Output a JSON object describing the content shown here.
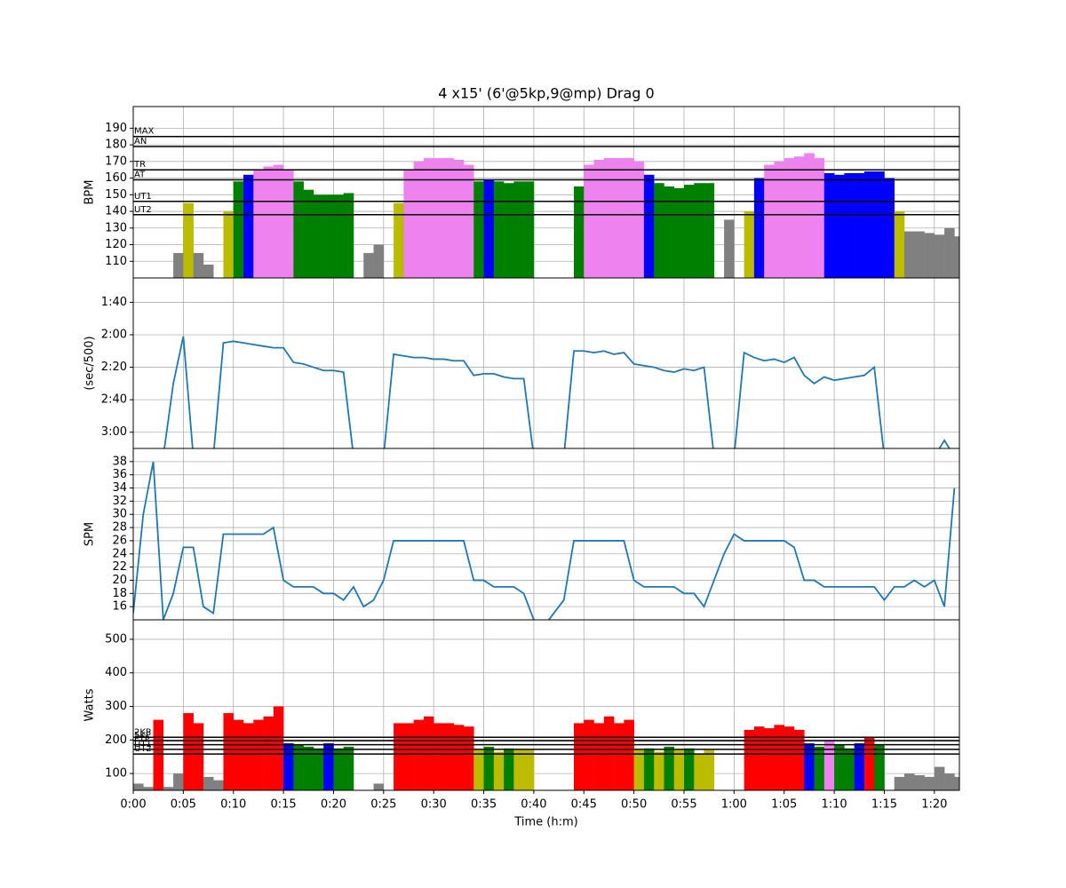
{
  "chart_data": [
    {
      "type": "bar",
      "title": "4 x15' (6'@5kp,9@mp) Drag 0",
      "ylabel": "BPM",
      "x": [
        0,
        1,
        2,
        3,
        4,
        5,
        6,
        7,
        8,
        9,
        10,
        11,
        12,
        13,
        14,
        15,
        16,
        17,
        18,
        19,
        20,
        21,
        22,
        23,
        24,
        25,
        26,
        27,
        28,
        29,
        30,
        31,
        32,
        33,
        34,
        35,
        36,
        37,
        38,
        39,
        40,
        41,
        42,
        43,
        44,
        45,
        46,
        47,
        48,
        49,
        50,
        51,
        52,
        53,
        54,
        55,
        56,
        57,
        58,
        59,
        60,
        61,
        62,
        63,
        64,
        65,
        66,
        67,
        68,
        69,
        70,
        71,
        72,
        73,
        74,
        75,
        76,
        77,
        78,
        79,
        80,
        81,
        82
      ],
      "values": [
        null,
        null,
        null,
        null,
        115,
        145,
        115,
        108,
        null,
        140,
        158,
        162,
        165,
        167,
        168,
        165,
        158,
        153,
        150,
        150,
        150,
        151,
        null,
        115,
        120,
        null,
        145,
        165,
        170,
        172,
        172,
        172,
        171,
        168,
        158,
        159,
        158,
        157,
        158,
        158,
        null,
        null,
        null,
        null,
        155,
        168,
        171,
        172,
        172,
        172,
        170,
        162,
        157,
        155,
        154,
        156,
        157,
        157,
        null,
        135,
        null,
        140,
        160,
        168,
        170,
        172,
        173,
        175,
        172,
        163,
        162,
        163,
        163,
        164,
        164,
        160,
        140,
        128,
        128,
        127,
        126,
        130,
        125
      ],
      "base_color": "#808080",
      "zones": [
        {
          "label": "UT2",
          "value": 138,
          "color": "#bbbb00"
        },
        {
          "label": "UT1",
          "value": 146,
          "color": "#008000"
        },
        {
          "label": "AT",
          "value": 159,
          "color": "#0000ff"
        },
        {
          "label": "TR",
          "value": 165,
          "color": "#ee82ee"
        },
        {
          "label": "AN",
          "value": 179,
          "color": "#ff0000"
        },
        {
          "label": "MAX",
          "value": 185,
          "color": "#ff0000"
        }
      ],
      "ylim": [
        100,
        203
      ],
      "yticks": [
        110,
        120,
        130,
        140,
        150,
        160,
        170,
        180,
        190
      ],
      "grid": true
    },
    {
      "type": "line",
      "ylabel": "(sec/500)",
      "color": "#1f77b4",
      "x": [
        0,
        1,
        2,
        3,
        4,
        5,
        6,
        7,
        8,
        9,
        10,
        11,
        12,
        13,
        14,
        15,
        16,
        17,
        18,
        19,
        20,
        21,
        22,
        23,
        24,
        25,
        26,
        27,
        28,
        29,
        30,
        31,
        32,
        33,
        34,
        35,
        36,
        37,
        38,
        39,
        40,
        41,
        42,
        43,
        44,
        45,
        46,
        47,
        48,
        49,
        50,
        51,
        52,
        53,
        54,
        55,
        56,
        57,
        58,
        59,
        60,
        61,
        62,
        63,
        64,
        65,
        66,
        67,
        68,
        69,
        70,
        71,
        72,
        73,
        74,
        75,
        76,
        77,
        78,
        79,
        80,
        81,
        82
      ],
      "values": [
        195,
        195,
        195,
        195,
        150,
        121,
        195,
        195,
        195,
        125,
        124,
        125,
        126,
        127,
        128,
        128,
        137,
        138,
        140,
        142,
        142,
        143,
        195,
        195,
        195,
        195,
        132,
        133,
        134,
        134,
        135,
        135,
        136,
        136,
        145,
        144,
        144,
        146,
        147,
        147,
        195,
        195,
        195,
        195,
        130,
        130,
        131,
        130,
        132,
        131,
        138,
        139,
        140,
        142,
        143,
        141,
        142,
        140,
        195,
        195,
        195,
        131,
        134,
        136,
        135,
        137,
        134,
        145,
        150,
        146,
        148,
        147,
        146,
        145,
        140,
        195,
        195,
        195,
        195,
        195,
        195,
        185,
        195
      ],
      "ylim": [
        190,
        85
      ],
      "yticks": [
        {
          "value": 100,
          "label": "1:40"
        },
        {
          "value": 120,
          "label": "2:00"
        },
        {
          "value": 140,
          "label": "2:20"
        },
        {
          "value": 160,
          "label": "2:40"
        },
        {
          "value": 180,
          "label": "3:00"
        }
      ],
      "grid": true
    },
    {
      "type": "line",
      "ylabel": "SPM",
      "color": "#1f77b4",
      "x": [
        0,
        1,
        2,
        3,
        4,
        5,
        6,
        7,
        8,
        9,
        10,
        11,
        12,
        13,
        14,
        15,
        16,
        17,
        18,
        19,
        20,
        21,
        22,
        23,
        24,
        25,
        26,
        27,
        28,
        29,
        30,
        31,
        32,
        33,
        34,
        35,
        36,
        37,
        38,
        39,
        40,
        41,
        42,
        43,
        44,
        45,
        46,
        47,
        48,
        49,
        50,
        51,
        52,
        53,
        54,
        55,
        56,
        57,
        58,
        59,
        60,
        61,
        62,
        63,
        64,
        65,
        66,
        67,
        68,
        69,
        70,
        71,
        72,
        73,
        74,
        75,
        76,
        77,
        78,
        79,
        80,
        81,
        82
      ],
      "values": [
        15,
        30,
        38,
        14,
        18,
        25,
        25,
        16,
        15,
        27,
        27,
        27,
        27,
        27,
        28,
        20,
        19,
        19,
        19,
        18,
        18,
        17,
        19,
        16,
        17,
        20,
        26,
        26,
        26,
        26,
        26,
        26,
        26,
        26,
        20,
        20,
        19,
        19,
        19,
        18,
        14,
        13,
        15,
        17,
        26,
        26,
        26,
        26,
        26,
        26,
        20,
        19,
        19,
        19,
        19,
        18,
        18,
        16,
        20,
        24,
        27,
        26,
        26,
        26,
        26,
        26,
        25,
        20,
        20,
        19,
        19,
        19,
        19,
        19,
        19,
        17,
        19,
        19,
        20,
        19,
        20,
        16,
        34
      ],
      "ylim": [
        14,
        40
      ],
      "yticks": [
        16,
        18,
        20,
        22,
        24,
        26,
        28,
        30,
        32,
        34,
        36,
        38
      ],
      "grid": true
    },
    {
      "type": "bar",
      "ylabel": "Watts",
      "xlabel": "Time (h:m)",
      "x": [
        0,
        1,
        2,
        3,
        4,
        5,
        6,
        7,
        8,
        9,
        10,
        11,
        12,
        13,
        14,
        15,
        16,
        17,
        18,
        19,
        20,
        21,
        22,
        23,
        24,
        25,
        26,
        27,
        28,
        29,
        30,
        31,
        32,
        33,
        34,
        35,
        36,
        37,
        38,
        39,
        40,
        41,
        42,
        43,
        44,
        45,
        46,
        47,
        48,
        49,
        50,
        51,
        52,
        53,
        54,
        55,
        56,
        57,
        58,
        59,
        60,
        61,
        62,
        63,
        64,
        65,
        66,
        67,
        68,
        69,
        70,
        71,
        72,
        73,
        74,
        75,
        76,
        77,
        78,
        79,
        80,
        81,
        82
      ],
      "values": [
        70,
        60,
        260,
        60,
        100,
        280,
        250,
        90,
        80,
        280,
        260,
        250,
        260,
        270,
        300,
        190,
        185,
        180,
        175,
        190,
        175,
        180,
        null,
        null,
        70,
        null,
        250,
        250,
        260,
        270,
        250,
        250,
        245,
        240,
        170,
        180,
        165,
        175,
        170,
        170,
        null,
        null,
        null,
        null,
        250,
        260,
        250,
        270,
        250,
        260,
        170,
        175,
        165,
        180,
        170,
        175,
        160,
        170,
        null,
        null,
        null,
        230,
        240,
        235,
        245,
        240,
        230,
        190,
        180,
        200,
        185,
        175,
        190,
        210,
        185,
        null,
        90,
        100,
        95,
        90,
        120,
        100,
        90
      ],
      "base_color": "#808080",
      "zones": [
        {
          "label": "UT2",
          "value": 158,
          "color": "#bbbb00"
        },
        {
          "label": "UT1",
          "value": 172,
          "color": "#008000"
        },
        {
          "label": "FTP",
          "value": 186,
          "color": "#0000ff"
        },
        {
          "label": "5KP",
          "value": 198,
          "color": "#ee82ee"
        },
        {
          "label": "2KP",
          "value": 208,
          "color": "#ff0000"
        }
      ],
      "ylim": [
        50,
        558
      ],
      "yticks": [
        100,
        200,
        300,
        400,
        500
      ],
      "grid": true,
      "xlim": [
        0,
        82.5
      ],
      "xticks": [
        {
          "value": 0,
          "label": "0:00"
        },
        {
          "value": 5,
          "label": "0:05"
        },
        {
          "value": 10,
          "label": "0:10"
        },
        {
          "value": 15,
          "label": "0:15"
        },
        {
          "value": 20,
          "label": "0:20"
        },
        {
          "value": 25,
          "label": "0:25"
        },
        {
          "value": 30,
          "label": "0:30"
        },
        {
          "value": 35,
          "label": "0:35"
        },
        {
          "value": 40,
          "label": "0:40"
        },
        {
          "value": 45,
          "label": "0:45"
        },
        {
          "value": 50,
          "label": "0:50"
        },
        {
          "value": 55,
          "label": "0:55"
        },
        {
          "value": 60,
          "label": "1:00"
        },
        {
          "value": 65,
          "label": "1:05"
        },
        {
          "value": 70,
          "label": "1:10"
        },
        {
          "value": 75,
          "label": "1:15"
        },
        {
          "value": 80,
          "label": "1:20"
        }
      ]
    }
  ]
}
